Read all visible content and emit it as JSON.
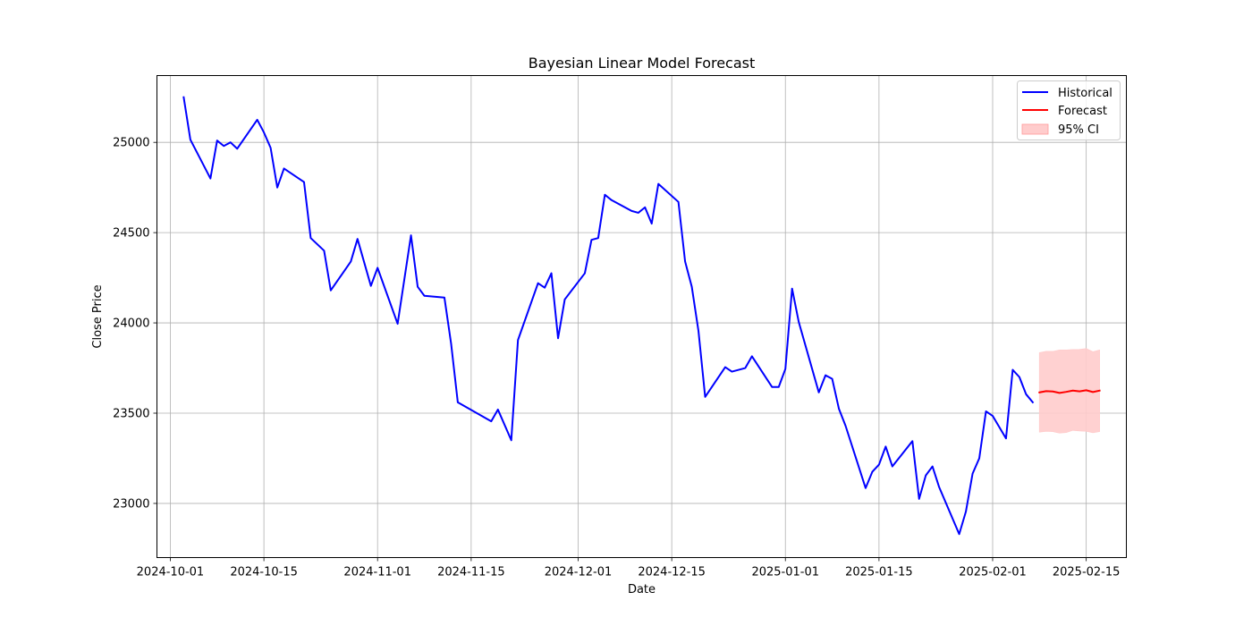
{
  "chart_data": {
    "type": "line",
    "title": "Bayesian Linear Model Forecast",
    "xlabel": "Date",
    "ylabel": "Close Price",
    "xlim": [
      "2024-09-29",
      "2025-02-21"
    ],
    "ylim": [
      22700,
      25370
    ],
    "grid": true,
    "legend_position": "top-right",
    "x_ticks": [
      "2024-10-01",
      "2024-10-15",
      "2024-11-01",
      "2024-11-15",
      "2024-12-01",
      "2024-12-15",
      "2025-01-01",
      "2025-01-15",
      "2025-02-01",
      "2025-02-15"
    ],
    "y_ticks": [
      23000,
      23500,
      24000,
      24500,
      25000
    ],
    "series": [
      {
        "name": "Historical",
        "color": "#0000ff",
        "points": [
          [
            "2024-10-03",
            25250
          ],
          [
            "2024-10-04",
            25015
          ],
          [
            "2024-10-07",
            24800
          ],
          [
            "2024-10-08",
            25010
          ],
          [
            "2024-10-09",
            24980
          ],
          [
            "2024-10-10",
            25000
          ],
          [
            "2024-10-11",
            24965
          ],
          [
            "2024-10-14",
            25125
          ],
          [
            "2024-10-15",
            25055
          ],
          [
            "2024-10-16",
            24970
          ],
          [
            "2024-10-17",
            24750
          ],
          [
            "2024-10-18",
            24855
          ],
          [
            "2024-10-21",
            24780
          ],
          [
            "2024-10-22",
            24470
          ],
          [
            "2024-10-24",
            24400
          ],
          [
            "2024-10-25",
            24180
          ],
          [
            "2024-10-28",
            24340
          ],
          [
            "2024-10-29",
            24465
          ],
          [
            "2024-10-31",
            24205
          ],
          [
            "2024-11-01",
            24305
          ],
          [
            "2024-11-04",
            23995
          ],
          [
            "2024-11-06",
            24485
          ],
          [
            "2024-11-07",
            24200
          ],
          [
            "2024-11-08",
            24150
          ],
          [
            "2024-11-11",
            24140
          ],
          [
            "2024-11-12",
            23885
          ],
          [
            "2024-11-13",
            23560
          ],
          [
            "2024-11-18",
            23455
          ],
          [
            "2024-11-19",
            23520
          ],
          [
            "2024-11-21",
            23350
          ],
          [
            "2024-11-22",
            23905
          ],
          [
            "2024-11-25",
            24220
          ],
          [
            "2024-11-26",
            24195
          ],
          [
            "2024-11-27",
            24275
          ],
          [
            "2024-11-28",
            23915
          ],
          [
            "2024-11-29",
            24130
          ],
          [
            "2024-12-02",
            24275
          ],
          [
            "2024-12-03",
            24460
          ],
          [
            "2024-12-04",
            24470
          ],
          [
            "2024-12-05",
            24710
          ],
          [
            "2024-12-06",
            24680
          ],
          [
            "2024-12-09",
            24620
          ],
          [
            "2024-12-10",
            24610
          ],
          [
            "2024-12-11",
            24640
          ],
          [
            "2024-12-12",
            24550
          ],
          [
            "2024-12-13",
            24770
          ],
          [
            "2024-12-16",
            24670
          ],
          [
            "2024-12-17",
            24340
          ],
          [
            "2024-12-18",
            24200
          ],
          [
            "2024-12-19",
            23955
          ],
          [
            "2024-12-20",
            23590
          ],
          [
            "2024-12-23",
            23755
          ],
          [
            "2024-12-24",
            23730
          ],
          [
            "2024-12-26",
            23750
          ],
          [
            "2024-12-27",
            23815
          ],
          [
            "2024-12-30",
            23645
          ],
          [
            "2024-12-31",
            23645
          ],
          [
            "2025-01-01",
            23745
          ],
          [
            "2025-01-02",
            24190
          ],
          [
            "2025-01-03",
            24005
          ],
          [
            "2025-01-06",
            23615
          ],
          [
            "2025-01-07",
            23710
          ],
          [
            "2025-01-08",
            23690
          ],
          [
            "2025-01-09",
            23525
          ],
          [
            "2025-01-10",
            23430
          ],
          [
            "2025-01-13",
            23085
          ],
          [
            "2025-01-14",
            23175
          ],
          [
            "2025-01-15",
            23215
          ],
          [
            "2025-01-16",
            23315
          ],
          [
            "2025-01-17",
            23205
          ],
          [
            "2025-01-20",
            23345
          ],
          [
            "2025-01-21",
            23025
          ],
          [
            "2025-01-22",
            23155
          ],
          [
            "2025-01-23",
            23205
          ],
          [
            "2025-01-24",
            23090
          ],
          [
            "2025-01-27",
            22830
          ],
          [
            "2025-01-28",
            22955
          ],
          [
            "2025-01-29",
            23165
          ],
          [
            "2025-01-30",
            23250
          ],
          [
            "2025-01-31",
            23510
          ],
          [
            "2025-02-01",
            23485
          ],
          [
            "2025-02-03",
            23360
          ],
          [
            "2025-02-04",
            23740
          ],
          [
            "2025-02-05",
            23700
          ],
          [
            "2025-02-06",
            23605
          ],
          [
            "2025-02-07",
            23560
          ]
        ]
      },
      {
        "name": "Forecast",
        "color": "#ff0000",
        "points": [
          [
            "2025-02-08",
            23615
          ],
          [
            "2025-02-09",
            23622
          ],
          [
            "2025-02-10",
            23620
          ],
          [
            "2025-02-11",
            23612
          ],
          [
            "2025-02-12",
            23618
          ],
          [
            "2025-02-13",
            23625
          ],
          [
            "2025-02-14",
            23621
          ],
          [
            "2025-02-15",
            23627
          ],
          [
            "2025-02-16",
            23617
          ],
          [
            "2025-02-17",
            23625
          ]
        ]
      }
    ],
    "confidence_band": {
      "name": "95% CI",
      "color": "#ffcccc",
      "points": [
        [
          "2025-02-08",
          23395,
          23835
        ],
        [
          "2025-02-09",
          23400,
          23842
        ],
        [
          "2025-02-10",
          23398,
          23842
        ],
        [
          "2025-02-11",
          23390,
          23850
        ],
        [
          "2025-02-12",
          23393,
          23850
        ],
        [
          "2025-02-13",
          23405,
          23852
        ],
        [
          "2025-02-14",
          23402,
          23853
        ],
        [
          "2025-02-15",
          23400,
          23858
        ],
        [
          "2025-02-16",
          23392,
          23840
        ],
        [
          "2025-02-17",
          23398,
          23850
        ]
      ]
    }
  }
}
